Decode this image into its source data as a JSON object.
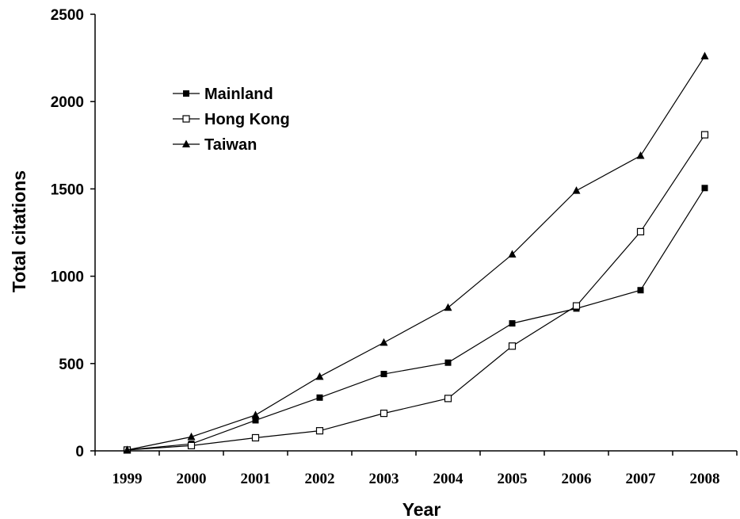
{
  "chart_data": {
    "type": "line",
    "xlabel": "Year",
    "ylabel": "Total citations",
    "x": [
      "1999",
      "2000",
      "2001",
      "2002",
      "2003",
      "2004",
      "2005",
      "2006",
      "2007",
      "2008"
    ],
    "yticks": [
      "0",
      "500",
      "1000",
      "1500",
      "2000",
      "2500"
    ],
    "ylim": [
      0,
      2500
    ],
    "grid": false,
    "legend_position": "top-left",
    "series": [
      {
        "name": "Mainland",
        "marker": "filled-square",
        "color": "#000000",
        "values": [
          5,
          40,
          175,
          305,
          440,
          505,
          730,
          815,
          920,
          1505
        ]
      },
      {
        "name": "Hong Kong",
        "marker": "open-square",
        "color": "#000000",
        "values": [
          5,
          30,
          75,
          115,
          215,
          300,
          600,
          830,
          1255,
          1810
        ]
      },
      {
        "name": "Taiwan",
        "marker": "filled-triangle",
        "color": "#000000",
        "values": [
          5,
          80,
          205,
          425,
          620,
          820,
          1125,
          1490,
          1690,
          2260
        ]
      }
    ]
  }
}
